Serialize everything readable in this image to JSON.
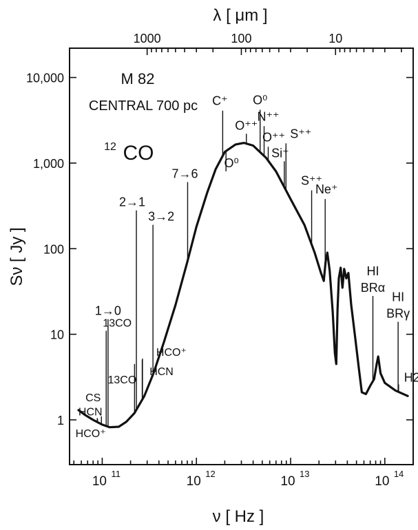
{
  "chart_data": {
    "type": "line",
    "xscale": "log",
    "yscale": "log",
    "xlim": [
      45000000000,
      200000000000000
    ],
    "ylim": [
      0.3,
      22000
    ],
    "top_axis": {
      "label": "λ  [ μm ]",
      "ticks": [
        {
          "label": "1000",
          "nu": 299800000000
        },
        {
          "label": "100",
          "nu": 2998000000000
        },
        {
          "label": "10",
          "nu": 29980000000000
        }
      ]
    },
    "xlabel": "ν  [ Hz ]",
    "ylabel": "Sν  [ Jy ]",
    "x_ticks": [
      {
        "label": "10",
        "exp": "11",
        "nu": 100000000000
      },
      {
        "label": "10",
        "exp": "12",
        "nu": 1000000000000
      },
      {
        "label": "10",
        "exp": "13",
        "nu": 10000000000000
      },
      {
        "label": "10",
        "exp": "14",
        "nu": 100000000000000
      }
    ],
    "y_ticks": [
      {
        "label": "1",
        "v": 1
      },
      {
        "label": "10",
        "v": 10
      },
      {
        "label": "100",
        "v": 100
      },
      {
        "label": "1,000",
        "v": 1000
      },
      {
        "label": "10,000",
        "v": 10000
      }
    ],
    "annotations_text": {
      "object": "M 82",
      "region": "CENTRAL  700 pc",
      "co_mass": "12",
      "co_species": "CO"
    },
    "series": [
      {
        "points": [
          [
            56000000000,
            1.3
          ],
          [
            65000000000,
            1.15
          ],
          [
            80000000000,
            1.0
          ],
          [
            100000000000,
            0.88
          ],
          [
            120000000000,
            0.82
          ],
          [
            150000000000,
            0.83
          ],
          [
            180000000000,
            0.95
          ],
          [
            220000000000,
            1.2
          ],
          [
            280000000000,
            1.9
          ],
          [
            350000000000,
            3.5
          ],
          [
            450000000000,
            8
          ],
          [
            600000000000,
            22
          ],
          [
            800000000000,
            70
          ],
          [
            1000000000000,
            180
          ],
          [
            1300000000000,
            450
          ],
          [
            1600000000000,
            850
          ],
          [
            2000000000000,
            1350
          ],
          [
            2600000000000,
            1650
          ],
          [
            3200000000000,
            1720
          ],
          [
            4000000000000,
            1600
          ],
          [
            5500000000000,
            1150
          ],
          [
            7000000000000,
            800
          ],
          [
            10000000000000,
            380
          ],
          [
            14000000000000,
            190
          ],
          [
            18000000000000,
            90
          ],
          [
            21000000000000,
            52
          ],
          [
            22500000000000,
            42
          ],
          [
            23500000000000,
            70
          ],
          [
            24500000000000,
            90
          ],
          [
            26000000000000,
            55
          ],
          [
            28000000000000,
            18
          ],
          [
            29500000000000,
            6
          ],
          [
            30500000000000,
            4.5
          ],
          [
            31500000000000,
            20
          ],
          [
            32500000000000,
            45
          ],
          [
            34000000000000,
            60
          ],
          [
            35500000000000,
            35
          ],
          [
            37000000000000,
            58
          ],
          [
            39000000000000,
            45
          ],
          [
            41000000000000,
            52
          ],
          [
            44000000000000,
            22
          ],
          [
            48000000000000,
            10
          ],
          [
            53000000000000,
            4
          ],
          [
            57000000000000,
            2.1
          ],
          [
            63000000000000,
            2.0
          ],
          [
            70000000000000,
            2.5
          ],
          [
            77000000000000,
            3.0
          ],
          [
            82000000000000,
            4.5
          ],
          [
            85000000000000,
            5.5
          ],
          [
            90000000000000,
            3.5
          ],
          [
            100000000000000,
            2.7
          ],
          [
            130000000000000,
            2.2
          ],
          [
            175000000000000,
            1.9
          ]
        ]
      }
    ],
    "lines": [
      {
        "label": "1→0",
        "nu": 115300000000,
        "top": 15,
        "lx": 0,
        "ly": -6,
        "anchor": "middle"
      },
      {
        "label": "2→1",
        "nu": 230500000000,
        "top": 280,
        "lx": -6,
        "ly": -6,
        "anchor": "middle"
      },
      {
        "label": "3→2",
        "nu": 345800000000,
        "top": 190,
        "lx": 12,
        "ly": -6,
        "anchor": "middle"
      },
      {
        "label": "7→6",
        "nu": 806700000000,
        "top": 600,
        "lx": -4,
        "ly": -6,
        "anchor": "middle"
      },
      {
        "label": "C⁺",
        "nu": 1900500000000,
        "top": 4100,
        "lx": -4,
        "ly": -8,
        "anchor": "middle"
      },
      {
        "label": "O⁰",
        "nu": 2060000000000,
        "top": 800,
        "lx": 8,
        "ly": -6,
        "anchor": "middle"
      },
      {
        "label": "O⁺⁺",
        "nu": 3390000000000,
        "top": 2200,
        "lx": 0,
        "ly": -6,
        "anchor": "middle"
      },
      {
        "label": "O⁰",
        "nu": 4745000000000,
        "top": 4200,
        "lx": 0,
        "ly": -8,
        "anchor": "middle"
      },
      {
        "label": "N⁺⁺",
        "nu": 5230000000000,
        "top": 2700,
        "lx": 6,
        "ly": -8,
        "anchor": "middle"
      },
      {
        "label": "O⁺⁺",
        "nu": 5785000000000,
        "top": 1550,
        "lx": 8,
        "ly": -8,
        "anchor": "middle"
      },
      {
        "label": "S⁺⁺",
        "nu": 8930000000000,
        "top": 1700,
        "lx": 6,
        "ly": -8,
        "anchor": "start"
      },
      {
        "label": "Si⁺",
        "nu": 8570000000000,
        "top": 1050,
        "lx": -6,
        "ly": -6,
        "anchor": "middle"
      },
      {
        "label": "S⁺⁺",
        "nu": 16720000000000,
        "top": 480,
        "lx": 0,
        "ly": -8,
        "anchor": "middle"
      },
      {
        "label": "Ne⁺",
        "nu": 23270000000000,
        "top": 380,
        "lx": 2,
        "ly": -8,
        "anchor": "middle"
      },
      {
        "label": "HI\nBRα",
        "nu": 74700000000000,
        "top": 28,
        "lx": 0,
        "ly": -30,
        "anchor": "middle"
      },
      {
        "label": "HI\nBRγ",
        "nu": 138400000000000,
        "top": 14,
        "lx": 0,
        "ly": -30,
        "anchor": "middle"
      },
      {
        "label": "H2",
        "nu": 140000000000000,
        "top": 2.6,
        "lx": 8,
        "ly": -4,
        "anchor": "start"
      }
    ],
    "bottom_lines": [
      {
        "label": "CS",
        "nu": 97980000000,
        "top": 1.1,
        "lx": -12,
        "ly": -22
      },
      {
        "label": "HCN",
        "nu": 88630000000,
        "top": 1.05,
        "lx": -10,
        "ly": -4
      },
      {
        "label": "HCO⁺",
        "nu": 89190000000,
        "top": 1.02,
        "lx": -10,
        "ly": 26
      },
      {
        "label": "13CO",
        "nu": 110200000000,
        "top": 11,
        "lx": 16,
        "ly": -6
      },
      {
        "label": "13CO",
        "nu": 220400000000,
        "top": 4.5,
        "lx": -18,
        "ly": 28
      },
      {
        "label": "HCN",
        "nu": 265900000000,
        "top": 5,
        "lx": 28,
        "ly": 22
      },
      {
        "label": "HCO⁺",
        "nu": 267600000000,
        "top": 5.2,
        "lx": 42,
        "ly": -4
      }
    ]
  }
}
